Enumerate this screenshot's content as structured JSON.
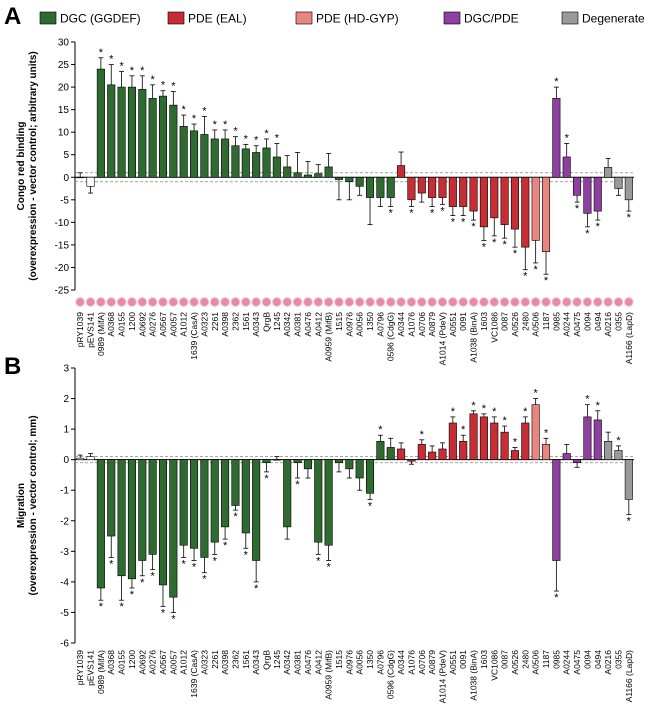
{
  "chart_data": [
    {
      "type": "bar",
      "panel_label": "A",
      "ylabel": [
        "Congo red binding",
        "(overexpression - vector control; arbitrary units)"
      ],
      "legend": [
        {
          "name": "DGC (GGDEF)",
          "color": "#2f6b30"
        },
        {
          "name": "PDE (EAL)",
          "color": "#c62d34"
        },
        {
          "name": "PDE (HD-GYP)",
          "color": "#e8857e"
        },
        {
          "name": "DGC/PDE",
          "color": "#8e3fa0"
        },
        {
          "name": "Degenerate",
          "color": "#9a9a9a"
        }
      ],
      "control_color": "#ffffff",
      "categories": [
        "pRY1039",
        "pEVS141",
        "0989 (MifA)",
        "A0368",
        "A0155",
        "1200",
        "A0692",
        "A0276",
        "A0567",
        "A0057",
        "A1012",
        "1639 (CasA)",
        "A0323",
        "2261",
        "A0398",
        "2362",
        "1561",
        "A0343",
        "QrgB",
        "1245",
        "A0342",
        "A0381",
        "A0476",
        "A0412",
        "A0959 (MifB)",
        "1515",
        "A0976",
        "A0056",
        "1350",
        "A0796",
        "0596 (CdgG)",
        "A0344",
        "A1076",
        "A0706",
        "A0879",
        "A1014 (PdeV)",
        "A0551",
        "0091",
        "A1038 (BinA)",
        "1603",
        "VC1086",
        "0087",
        "A0526",
        "2480",
        "A0506",
        "1187",
        "0985",
        "A0244",
        "A0475",
        "0094",
        "0494",
        "A0216",
        "0355",
        "A1166 (LapD)"
      ],
      "group_index": [
        null,
        null,
        0,
        0,
        0,
        0,
        0,
        0,
        0,
        0,
        0,
        0,
        0,
        0,
        0,
        0,
        0,
        0,
        0,
        0,
        0,
        0,
        0,
        0,
        0,
        0,
        0,
        0,
        0,
        0,
        0,
        1,
        1,
        1,
        1,
        1,
        1,
        1,
        1,
        1,
        1,
        1,
        1,
        1,
        2,
        2,
        3,
        3,
        3,
        3,
        3,
        4,
        4,
        4
      ],
      "values": [
        0,
        -2,
        24,
        20.5,
        20,
        20,
        19.5,
        17.5,
        18,
        16,
        11.3,
        10.3,
        9.5,
        8.5,
        8.5,
        7,
        6.3,
        5.5,
        6.5,
        4.5,
        2.3,
        1,
        0.5,
        0.8,
        2.3,
        -0.5,
        -1,
        -2,
        -4.5,
        -4.5,
        -4.5,
        2.6,
        -5,
        -3.5,
        -4.5,
        -4.5,
        -6.5,
        -6.5,
        -7.5,
        -11,
        -9,
        -10.5,
        -11.5,
        -15.5,
        -14,
        -16.5,
        17.5,
        4.5,
        -4,
        -8,
        -7.5,
        2.2,
        -2.5,
        -5
      ],
      "errors": [
        1,
        1.5,
        2.5,
        4.5,
        3.5,
        2.5,
        3,
        3,
        1.2,
        3,
        2.5,
        1.5,
        4,
        2,
        2,
        2,
        1,
        1.5,
        2,
        3,
        2.5,
        4.5,
        3,
        2,
        3,
        4.5,
        4,
        2,
        6,
        2,
        2,
        3,
        1.5,
        2,
        2,
        1.5,
        2,
        2,
        2,
        3,
        4,
        3,
        4,
        5,
        5,
        5,
        2.5,
        3,
        1.5,
        3,
        2,
        2,
        1.5,
        2.5
      ],
      "significance_marker": "*",
      "significant": [
        false,
        false,
        true,
        true,
        true,
        true,
        true,
        true,
        true,
        true,
        true,
        true,
        true,
        true,
        true,
        true,
        true,
        true,
        true,
        true,
        false,
        false,
        false,
        false,
        false,
        false,
        false,
        false,
        false,
        false,
        true,
        false,
        true,
        false,
        true,
        true,
        true,
        true,
        true,
        true,
        true,
        true,
        true,
        true,
        true,
        true,
        true,
        true,
        true,
        true,
        true,
        false,
        false,
        true
      ],
      "ylim": [
        -25,
        30
      ],
      "yticks": [
        -25,
        -20,
        -15,
        -10,
        -5,
        0,
        5,
        10,
        15,
        20,
        25,
        30
      ],
      "threshold": [
        -1,
        1
      ]
    },
    {
      "type": "bar",
      "panel_label": "B",
      "ylabel": [
        "Migration",
        "(overexpression - vector control; mm)"
      ],
      "control_color": "#ffffff",
      "categories": [
        "pRY1039",
        "pEVS141",
        "0989 (MifA)",
        "A0368",
        "A0155",
        "1200",
        "A0692",
        "A0276",
        "A0567",
        "A0057",
        "A1012",
        "1639 (CasA)",
        "A0323",
        "2261",
        "A0398",
        "2362",
        "1561",
        "A0343",
        "QrgB",
        "1245",
        "A0342",
        "A0381",
        "A0476",
        "A0412",
        "A0959 (MifB)",
        "1515",
        "A0976",
        "A0056",
        "1350",
        "A0796",
        "0596 (CdgG)",
        "A0344",
        "A1076",
        "A0706",
        "A0879",
        "A1014 (PdeV)",
        "A0551",
        "0091",
        "A1038 (BinA)",
        "1603",
        "VC1086",
        "0087",
        "A0526",
        "2480",
        "A0506",
        "1187",
        "0985",
        "A0244",
        "A0475",
        "0094",
        "0494",
        "A0216",
        "0355",
        "A1166 (LapD)"
      ],
      "group_index": [
        null,
        null,
        0,
        0,
        0,
        0,
        0,
        0,
        0,
        0,
        0,
        0,
        0,
        0,
        0,
        0,
        0,
        0,
        0,
        0,
        0,
        0,
        0,
        0,
        0,
        0,
        0,
        0,
        0,
        0,
        0,
        1,
        1,
        1,
        1,
        1,
        1,
        1,
        1,
        1,
        1,
        1,
        1,
        1,
        2,
        2,
        3,
        3,
        3,
        3,
        3,
        4,
        4,
        4
      ],
      "values": [
        0.05,
        0.1,
        -4.2,
        -2.5,
        -3.8,
        -3.9,
        -3.3,
        -3.1,
        -4.1,
        -4.5,
        -2.8,
        -2.9,
        -3.2,
        -2.7,
        -2.2,
        -1.5,
        -2.4,
        -3.3,
        -0.1,
        0,
        -2.2,
        -0.1,
        -0.3,
        -2.7,
        -2.8,
        -0.1,
        -0.3,
        -0.6,
        -1.1,
        0.6,
        0.4,
        0.35,
        -0.05,
        0.5,
        0.25,
        0.35,
        1.2,
        0.6,
        1.5,
        1.4,
        1.2,
        0.9,
        0.3,
        1.2,
        1.8,
        0.5,
        -3.3,
        0.2,
        -0.1,
        1.4,
        1.3,
        0.6,
        0.3,
        -1.3
      ],
      "errors": [
        0.1,
        0.1,
        0.4,
        0.7,
        0.8,
        0.3,
        0.5,
        0.5,
        0.7,
        0.5,
        0.4,
        0.4,
        0.5,
        0.4,
        0.4,
        0.15,
        0.5,
        0.7,
        0.3,
        0.1,
        0.4,
        0.5,
        0.3,
        0.4,
        0.5,
        0.3,
        0.3,
        0.4,
        0.2,
        0.2,
        0.3,
        0.2,
        0.1,
        0.15,
        0.2,
        0.2,
        0.2,
        0.2,
        0.1,
        0.1,
        0.2,
        0.2,
        0.1,
        0.2,
        0.2,
        0.2,
        1.0,
        0.3,
        0.15,
        0.4,
        0.3,
        0.3,
        0.15,
        0.5
      ],
      "significance_marker": "*",
      "significant": [
        false,
        false,
        true,
        true,
        true,
        true,
        true,
        true,
        true,
        true,
        true,
        true,
        true,
        true,
        true,
        true,
        true,
        true,
        true,
        false,
        false,
        true,
        false,
        true,
        true,
        false,
        false,
        false,
        true,
        true,
        false,
        false,
        false,
        true,
        false,
        false,
        true,
        true,
        true,
        true,
        true,
        true,
        true,
        true,
        true,
        true,
        true,
        false,
        false,
        true,
        true,
        false,
        true,
        true
      ],
      "ylim": [
        -6,
        3
      ],
      "yticks": [
        -6,
        -5,
        -4,
        -3,
        -2,
        -1,
        0,
        1,
        2,
        3
      ],
      "threshold": [
        -0.1,
        0.1
      ]
    }
  ]
}
